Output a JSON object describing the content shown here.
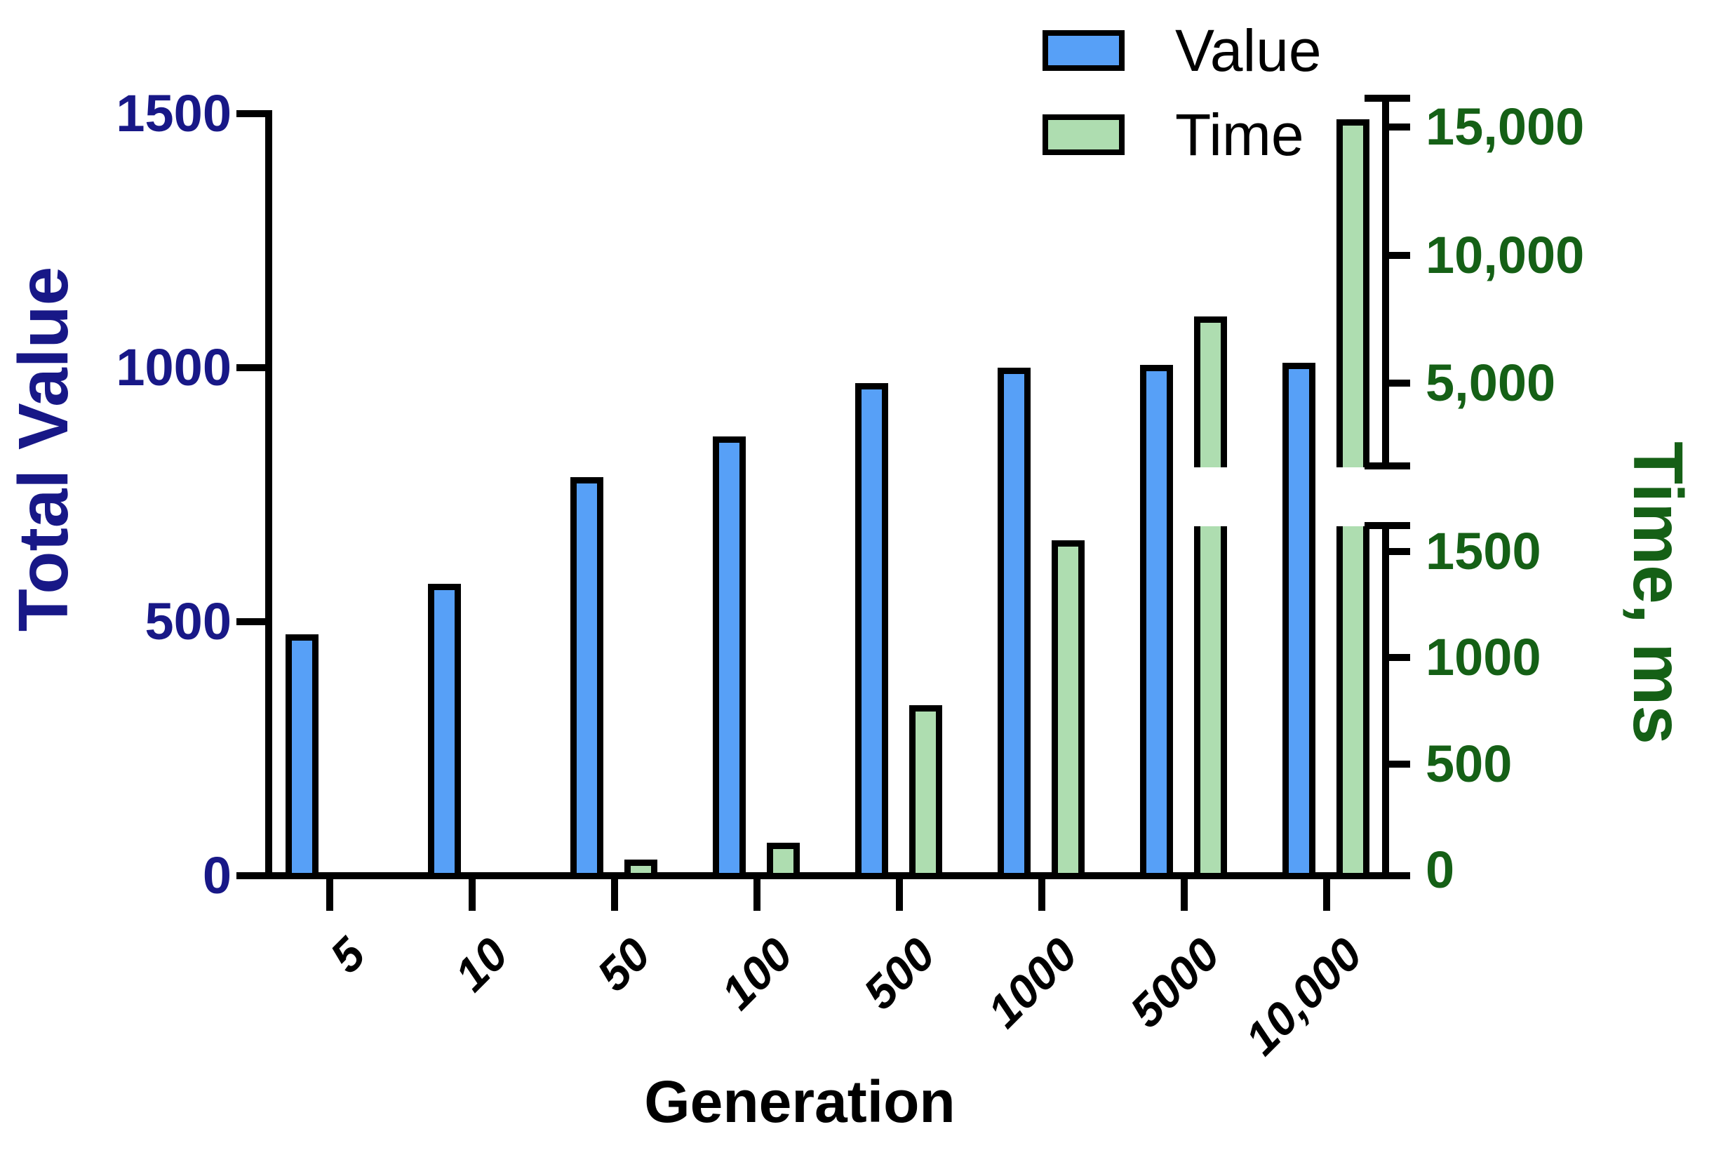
{
  "chart_data": {
    "type": "bar",
    "title": "",
    "xlabel": "Generation",
    "categories": [
      "5",
      "10",
      "50",
      "100",
      "500",
      "1000",
      "5000",
      "10,000"
    ],
    "series": [
      {
        "name": "Value",
        "axis": "left",
        "color": "#57A0F7",
        "values": [
          475,
          575,
          785,
          865,
          970,
          1000,
          1005,
          1010
        ]
      },
      {
        "name": "Time",
        "axis": "right",
        "color": "#AEDDB0",
        "values": [
          0,
          0,
          50,
          130,
          775,
          1550,
          7600,
          15300
        ]
      }
    ],
    "left_axis": {
      "title": "Total Value",
      "color": "#181887",
      "range": [
        0,
        1500
      ],
      "ticks": [
        {
          "value": 0,
          "label": "0"
        },
        {
          "value": 500,
          "label": "500"
        },
        {
          "value": 1000,
          "label": "1000"
        },
        {
          "value": 1500,
          "label": "1500"
        }
      ]
    },
    "right_axis": {
      "title": "Time, ms",
      "color": "#156016",
      "broken": true,
      "lower_range": [
        0,
        1500
      ],
      "upper_range": [
        5000,
        15000
      ],
      "lower_ticks": [
        {
          "value": 0,
          "label": "0"
        },
        {
          "value": 500,
          "label": "500"
        },
        {
          "value": 1000,
          "label": "1000"
        },
        {
          "value": 1500,
          "label": "1500"
        }
      ],
      "upper_ticks": [
        {
          "value": 5000,
          "label": "5,000"
        },
        {
          "value": 10000,
          "label": "10,000"
        },
        {
          "value": 15000,
          "label": "15,000"
        }
      ]
    },
    "legend": [
      {
        "label": "Value",
        "color": "#57A0F7"
      },
      {
        "label": "Time",
        "color": "#AEDDB0"
      }
    ],
    "grid": false,
    "legend_position": "top-center"
  }
}
